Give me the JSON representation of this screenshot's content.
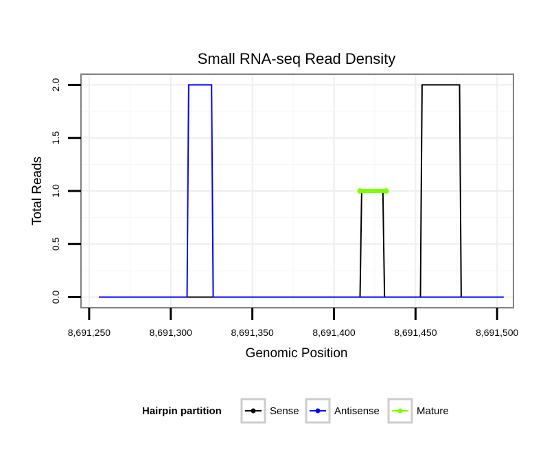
{
  "chart_data": {
    "type": "line",
    "title": "Small RNA-seq Read Density",
    "xlabel": "Genomic Position",
    "ylabel": "Total Reads",
    "xlim": [
      8691245,
      8691510
    ],
    "ylim": [
      -0.1,
      2.1
    ],
    "x_ticks": [
      8691250,
      8691300,
      8691350,
      8691400,
      8691450,
      8691500
    ],
    "x_tick_labels": [
      "8,691,250",
      "8,691,300",
      "8,691,350",
      "8,691,400",
      "8,691,450",
      "8,691,500"
    ],
    "y_ticks": [
      0,
      0.5,
      1,
      1.5,
      2
    ],
    "y_tick_labels": [
      "0.0",
      "0.5",
      "1.0",
      "1.5",
      "2.0"
    ],
    "grid": true,
    "legend": {
      "title": "Hairpin partition",
      "position": "bottom",
      "entries": [
        "Sense",
        "Antisense",
        "Mature"
      ]
    },
    "series": [
      {
        "name": "Sense",
        "color": "#000000",
        "x": [
          8691256,
          8691416,
          8691417,
          8691430,
          8691431,
          8691453,
          8691454,
          8691477,
          8691478,
          8691504
        ],
        "y": [
          0,
          0,
          1,
          1,
          0,
          0,
          2,
          2,
          0,
          0
        ]
      },
      {
        "name": "Antisense",
        "color": "#0000ff",
        "x": [
          8691256,
          8691310,
          8691311,
          8691325,
          8691326,
          8691504
        ],
        "y": [
          0,
          0,
          2,
          2,
          0,
          0
        ]
      },
      {
        "name": "Mature",
        "color": "#7fff00",
        "x": [
          8691416,
          8691432
        ],
        "y": [
          1,
          1
        ]
      }
    ]
  }
}
